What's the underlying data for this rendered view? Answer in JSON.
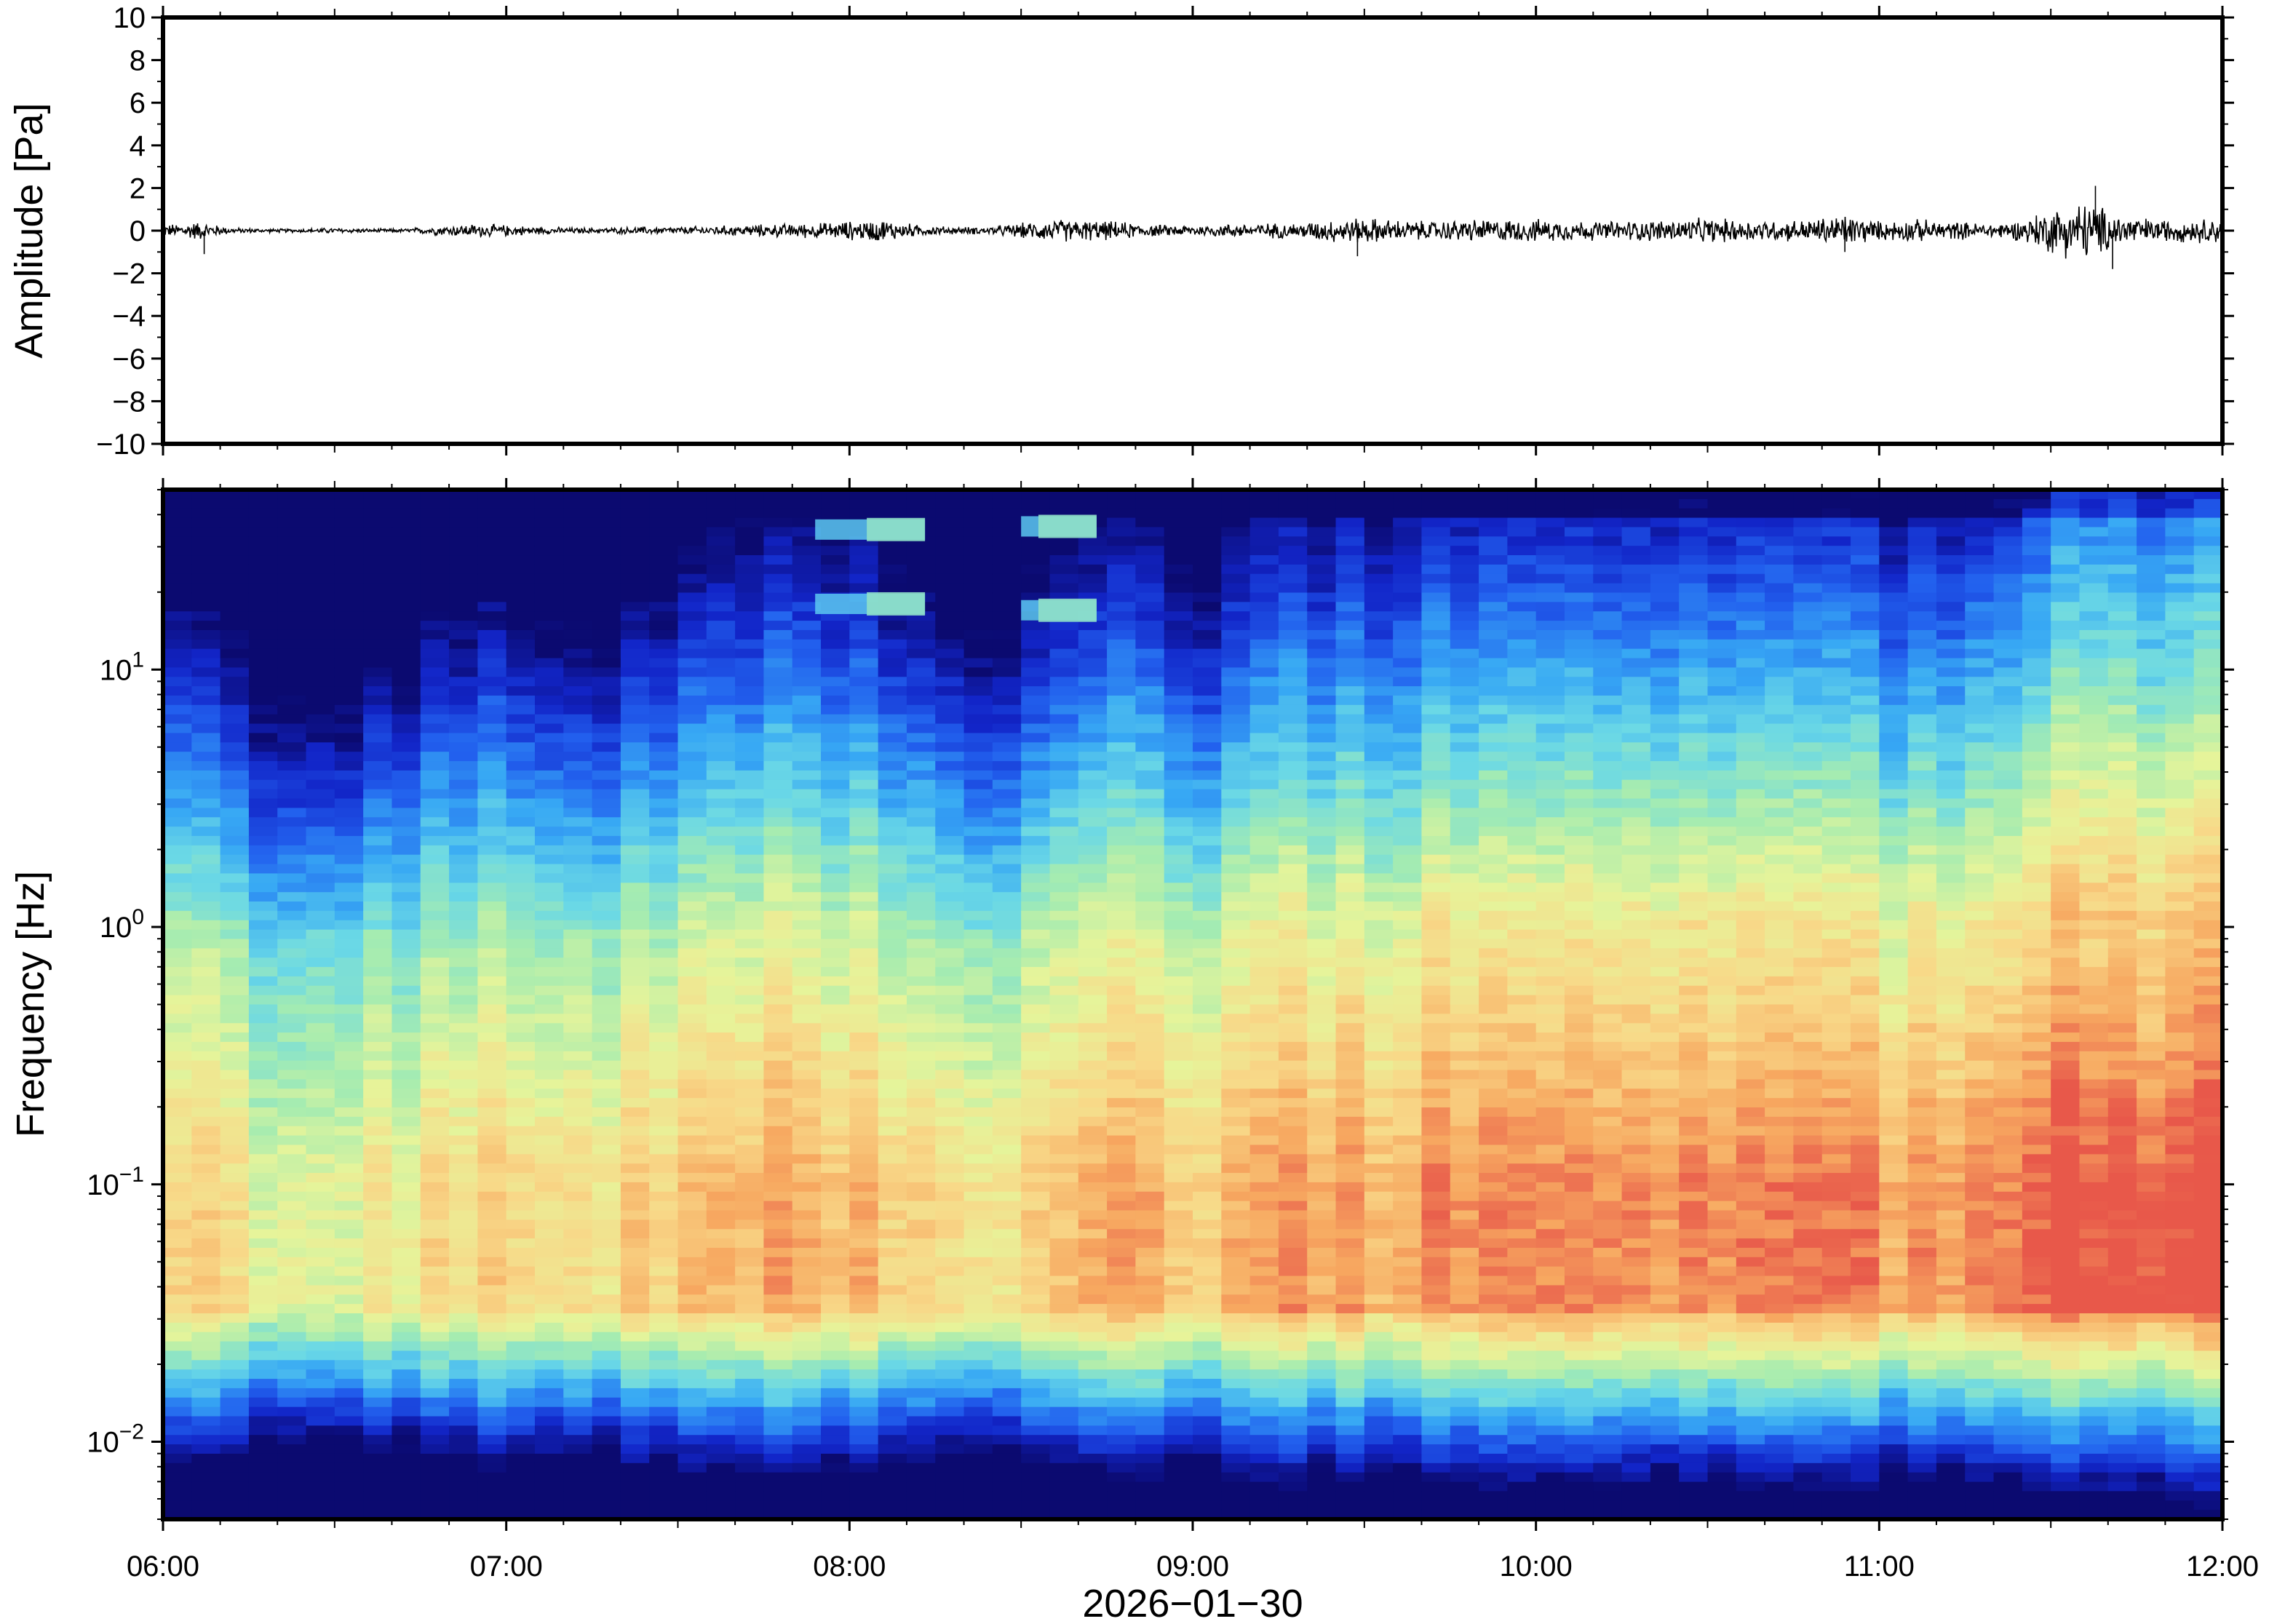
{
  "chart_data": [
    {
      "type": "line",
      "panel": "waveform",
      "ylabel": "Amplitude [Pa]",
      "ylim": [
        -10,
        10
      ],
      "yticks": [
        10,
        8,
        6,
        4,
        2,
        0,
        -2,
        -4,
        -6,
        -8,
        -10
      ],
      "ytick_labels": [
        "10",
        "8",
        "6",
        "4",
        "2",
        "0",
        "−2",
        "−4",
        "−6",
        "−8",
        "−10"
      ],
      "xlim_hours": [
        6,
        12
      ],
      "line_color": "#000000",
      "envelope": {
        "x_hours": [
          6.0,
          6.1,
          6.2,
          6.3,
          6.4,
          6.5,
          6.6,
          6.7,
          6.8,
          6.9,
          7.0,
          7.1,
          7.2,
          7.3,
          7.4,
          7.5,
          7.6,
          7.7,
          7.8,
          7.9,
          8.0,
          8.1,
          8.2,
          8.3,
          8.4,
          8.5,
          8.6,
          8.7,
          8.8,
          8.9,
          9.0,
          9.1,
          9.2,
          9.3,
          9.4,
          9.5,
          9.6,
          9.7,
          9.8,
          9.9,
          10.0,
          10.1,
          10.2,
          10.3,
          10.4,
          10.5,
          10.6,
          10.7,
          10.8,
          10.9,
          11.0,
          11.1,
          11.2,
          11.3,
          11.4,
          11.5,
          11.6,
          11.7,
          11.8,
          11.9,
          12.0
        ],
        "amplitude_pa": [
          0.3,
          0.5,
          0.15,
          0.1,
          0.1,
          0.15,
          0.1,
          0.1,
          0.25,
          0.35,
          0.3,
          0.2,
          0.15,
          0.15,
          0.2,
          0.2,
          0.25,
          0.3,
          0.35,
          0.4,
          0.5,
          0.6,
          0.3,
          0.2,
          0.2,
          0.4,
          0.6,
          0.55,
          0.45,
          0.3,
          0.3,
          0.35,
          0.4,
          0.4,
          0.6,
          0.7,
          0.55,
          0.5,
          0.6,
          0.6,
          0.6,
          0.55,
          0.5,
          0.55,
          0.6,
          0.65,
          0.6,
          0.55,
          0.6,
          0.9,
          0.5,
          0.6,
          0.5,
          0.4,
          0.5,
          1.2,
          1.6,
          0.9,
          0.6,
          0.6,
          0.7
        ],
        "spikes": [
          {
            "t_hours": 6.12,
            "value_pa": -1.1
          },
          {
            "t_hours": 9.48,
            "value_pa": -1.2
          },
          {
            "t_hours": 10.9,
            "value_pa": -1.0
          },
          {
            "t_hours": 11.63,
            "value_pa": 2.1
          },
          {
            "t_hours": 11.68,
            "value_pa": -1.8
          }
        ]
      }
    },
    {
      "type": "heatmap",
      "panel": "spectrogram",
      "ylabel": "Frequency [Hz]",
      "xlabel": "2026−01−30",
      "yscale": "log",
      "ylim_hz": [
        0.005,
        50
      ],
      "ytick_values": [
        10,
        1,
        0.1,
        0.01
      ],
      "ytick_labels": [
        {
          "base": "10",
          "exp": "1"
        },
        {
          "base": "10",
          "exp": "0"
        },
        {
          "base": "10",
          "exp": "−1"
        },
        {
          "base": "10",
          "exp": "−2"
        }
      ],
      "xtick_labels": [
        "06:00",
        "07:00",
        "08:00",
        "09:00",
        "10:00",
        "11:00",
        "12:00"
      ],
      "xticks_hours": [
        6,
        7,
        8,
        9,
        10,
        11,
        12
      ],
      "xlim_hours": [
        6,
        12
      ],
      "colormap": [
        "#0b0a70",
        "#1225c8",
        "#2260ee",
        "#37a8f4",
        "#6ad8e6",
        "#a6ecb0",
        "#e6f49a",
        "#f8d888",
        "#f7a860",
        "#e8584a"
      ],
      "color_scale_note": "relative power 0 (dark blue) to 1 (red)",
      "column_hours": [
        6.0,
        6.2,
        6.4,
        6.6,
        6.8,
        7.0,
        7.2,
        7.4,
        7.6,
        7.8,
        8.0,
        8.2,
        8.4,
        8.6,
        8.8,
        9.0,
        9.2,
        9.4,
        9.6,
        9.8,
        10.0,
        10.2,
        10.4,
        10.6,
        10.8,
        11.0,
        11.2,
        11.4,
        11.6,
        11.8
      ],
      "column_activity": [
        0.35,
        0.15,
        0.05,
        0.1,
        0.35,
        0.3,
        0.2,
        0.3,
        0.45,
        0.5,
        0.5,
        0.4,
        0.2,
        0.4,
        0.5,
        0.35,
        0.5,
        0.55,
        0.6,
        0.6,
        0.6,
        0.6,
        0.65,
        0.6,
        0.6,
        0.6,
        0.6,
        0.65,
        0.95,
        0.85
      ],
      "tonal_lines": [
        {
          "t_start_hours": 7.9,
          "t_end_hours": 8.22,
          "freq_hz": 18
        },
        {
          "t_start_hours": 7.9,
          "t_end_hours": 8.22,
          "freq_hz": 35
        },
        {
          "t_start_hours": 8.5,
          "t_end_hours": 8.72,
          "freq_hz": 17
        },
        {
          "t_start_hours": 8.5,
          "t_end_hours": 8.72,
          "freq_hz": 36
        }
      ]
    }
  ]
}
